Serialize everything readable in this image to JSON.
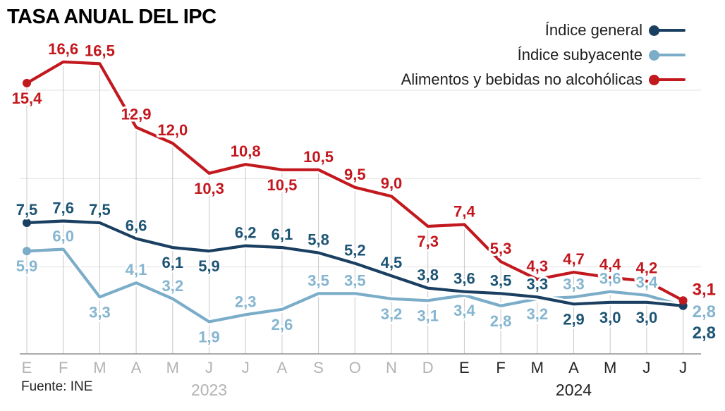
{
  "title": "TASA ANUAL DEL IPC",
  "source": "Fuente: INE",
  "legend": {
    "items": [
      {
        "label": "Índice general",
        "color": "#1a3f61"
      },
      {
        "label": "Índice subyacente",
        "color": "#7badc9"
      },
      {
        "label": "Alimentos y bebidas no alcohólicas",
        "color": "#c2191f"
      }
    ]
  },
  "chart_data": {
    "type": "line",
    "title": "TASA ANUAL DEL IPC",
    "x_months": [
      "E",
      "F",
      "M",
      "A",
      "M",
      "J",
      "J",
      "A",
      "S",
      "O",
      "N",
      "D",
      "E",
      "F",
      "M",
      "A",
      "M",
      "J",
      "J"
    ],
    "year_split": 12,
    "years": [
      {
        "label": "2023",
        "center_index": 5,
        "color": "#b3b3b3"
      },
      {
        "label": "2024",
        "center_index": 15,
        "color": "#242424"
      }
    ],
    "ylim": [
      0,
      17.6
    ],
    "gridlines_y": [
      5,
      10,
      15
    ],
    "vgrid_top_series": 2,
    "series": [
      {
        "name": "Índice general",
        "color": "#1a3f61",
        "label_color": "#1d5474",
        "end_dy": 46,
        "values": [
          7.5,
          7.6,
          7.5,
          6.6,
          6.1,
          5.9,
          6.2,
          6.1,
          5.8,
          5.2,
          4.5,
          3.8,
          3.6,
          3.5,
          3.3,
          2.9,
          3.0,
          3.0,
          2.8
        ],
        "label_side": [
          "above",
          "above",
          "above",
          "above",
          "below",
          "below",
          "above",
          "above",
          "above",
          "above",
          "above",
          "above",
          "above",
          "above",
          "above",
          "below",
          "below",
          "below",
          "right"
        ]
      },
      {
        "name": "Índice subyacente",
        "color": "#7badc9",
        "label_color": "#85b5cf",
        "end_dy": 16,
        "values": [
          5.9,
          6.0,
          3.3,
          4.1,
          3.2,
          1.9,
          2.3,
          2.6,
          3.5,
          3.5,
          3.2,
          3.1,
          3.4,
          2.8,
          3.2,
          3.3,
          3.6,
          3.4,
          2.8
        ],
        "label_side": [
          "below",
          "above",
          "below",
          "above",
          "above",
          "below",
          "above",
          "below",
          "above",
          "above",
          "below",
          "below",
          "below",
          "below",
          "below",
          "above",
          "above",
          "above",
          "right"
        ]
      },
      {
        "name": "Alimentos y bebidas no alcohólicas",
        "color": "#c2191f",
        "label_color": "#c3171d",
        "end_dy": -8,
        "values": [
          15.4,
          16.6,
          16.5,
          12.9,
          12.0,
          10.3,
          10.8,
          10.5,
          10.5,
          9.5,
          9.0,
          7.3,
          7.4,
          5.3,
          4.3,
          4.7,
          4.4,
          4.2,
          3.1
        ],
        "label_side": [
          "below",
          "above",
          "above",
          "above",
          "above",
          "below",
          "above",
          "below",
          "above",
          "above",
          "above",
          "below",
          "above",
          "above",
          "above",
          "above",
          "above",
          "above",
          "right"
        ]
      }
    ],
    "axis_color": "#8f8f8f",
    "vgrid_color": "#c7c7c7",
    "hgrid_color": "#e0e0e0",
    "month_color_past": "#b3b3b3",
    "month_color_current": "#242424"
  }
}
